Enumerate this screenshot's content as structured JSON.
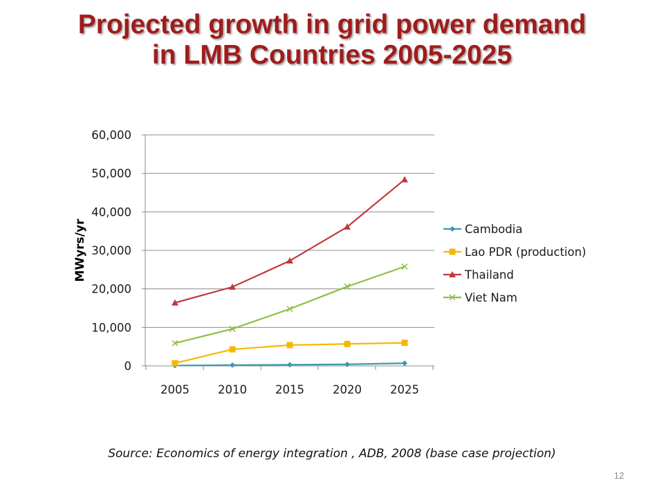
{
  "slide": {
    "title_line1": "Projected growth in grid power demand",
    "title_line2": "in LMB Countries 2005-2025",
    "source": "Source: Economics of energy integration , ADB, 2008 (base case projection)",
    "page_number": "12"
  },
  "chart_data": {
    "type": "line",
    "title": "",
    "xlabel": "",
    "ylabel": "MWyrs/yr",
    "x": [
      "2005",
      "2010",
      "2015",
      "2020",
      "2025"
    ],
    "ylim": [
      0,
      60000
    ],
    "yticks": [
      0,
      10000,
      20000,
      30000,
      40000,
      50000,
      60000
    ],
    "ytick_labels": [
      "0",
      "10,000",
      "20,000",
      "30,000",
      "40,000",
      "50,000",
      "60,000"
    ],
    "grid": true,
    "legend_position": "right",
    "series": [
      {
        "name": "Cambodia",
        "color": "#3a9ab0",
        "marker": "diamond",
        "values": [
          100,
          200,
          300,
          400,
          700
        ]
      },
      {
        "name": "Lao PDR (production)",
        "color": "#f5b800",
        "marker": "square",
        "values": [
          700,
          4300,
          5400,
          5700,
          6000
        ]
      },
      {
        "name": "Thailand",
        "color": "#c0393b",
        "marker": "triangle",
        "values": [
          16400,
          20500,
          27300,
          36100,
          48400
        ]
      },
      {
        "name": "Viet Nam",
        "color": "#8cbf3f",
        "marker": "x",
        "values": [
          5900,
          9600,
          14800,
          20600,
          25800
        ]
      }
    ]
  }
}
